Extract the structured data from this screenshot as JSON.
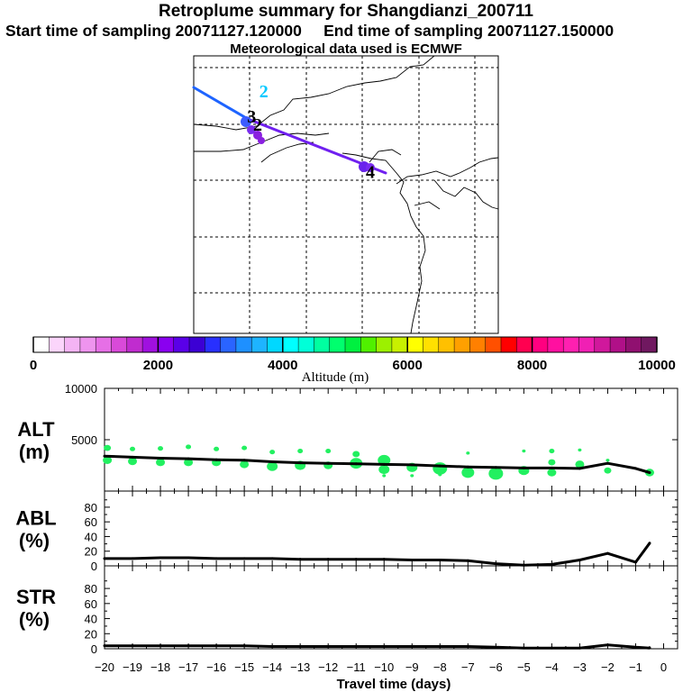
{
  "header": {
    "title": "Retroplume summary for Shangdianzi_200711",
    "start_label": "Start time of sampling",
    "start_value": "20071127.120000",
    "end_label": "End time of sampling",
    "end_value": "20071127.150000",
    "met_line": "Meteorological data used is ECMWF"
  },
  "map": {
    "markers": [
      {
        "label": "2",
        "lon_frac": 0.23,
        "lat_frac": 0.15,
        "color": "#00c8ff"
      },
      {
        "label": "3",
        "lon_frac": 0.19,
        "lat_frac": 0.24,
        "color": "#000000"
      },
      {
        "label": "2",
        "lon_frac": 0.21,
        "lat_frac": 0.27,
        "color": "#000000"
      },
      {
        "label": "4",
        "lon_frac": 0.58,
        "lat_frac": 0.44,
        "color": "#000000"
      }
    ]
  },
  "colorbar": {
    "label": "Altitude (m)",
    "tick_labels": [
      "0",
      "2000",
      "4000",
      "6000",
      "8000",
      "10000"
    ],
    "min": 0,
    "max": 10000,
    "colors": [
      "#ffffff",
      "#fbd5fb",
      "#f4b4f4",
      "#ee94ee",
      "#e66fe6",
      "#d94ad9",
      "#c02ccf",
      "#a010df",
      "#8a00f0",
      "#5a00e8",
      "#3c00d4",
      "#2830ff",
      "#2a64ff",
      "#1e90ff",
      "#1eb4ff",
      "#00d8ff",
      "#00ffff",
      "#00ffd8",
      "#00ffa0",
      "#00ff6e",
      "#00f040",
      "#50f000",
      "#9cf000",
      "#c8f000",
      "#ffff00",
      "#ffe000",
      "#ffc000",
      "#ffa000",
      "#ff8000",
      "#ff5000",
      "#ff0000",
      "#ff0050",
      "#ff0080",
      "#ff10a0",
      "#ff20b0",
      "#f020b4",
      "#d0189c",
      "#b01088",
      "#901070",
      "#701860"
    ]
  },
  "chart_data": [
    {
      "type": "line",
      "panel": "ALT",
      "ylabel_line1": "ALT",
      "ylabel_line2": "(m)",
      "ylim": [
        0,
        10000
      ],
      "yticks": [
        0,
        5000,
        10000
      ],
      "ytick_labels": [
        "",
        "5000",
        "10000"
      ],
      "x": [
        -20,
        -19,
        -18,
        -17,
        -16,
        -15,
        -14,
        -13,
        -12,
        -11,
        -10,
        -9,
        -8,
        -7,
        -6,
        -5,
        -4,
        -3,
        -2,
        -1,
        -0.5
      ],
      "values": [
        3400,
        3300,
        3200,
        3150,
        3050,
        3000,
        2850,
        2750,
        2700,
        2650,
        2600,
        2550,
        2450,
        2350,
        2300,
        2250,
        2250,
        2200,
        2700,
        2200,
        1800
      ],
      "scatter_color": "#22f060",
      "scatter": [
        {
          "x": -19.9,
          "y": 4200,
          "s": 4
        },
        {
          "x": -19.9,
          "y": 3000,
          "s": 5
        },
        {
          "x": -19,
          "y": 4100,
          "s": 3
        },
        {
          "x": -19,
          "y": 2900,
          "s": 5
        },
        {
          "x": -18,
          "y": 4150,
          "s": 3
        },
        {
          "x": -18,
          "y": 2800,
          "s": 5
        },
        {
          "x": -17,
          "y": 4300,
          "s": 3
        },
        {
          "x": -17,
          "y": 2800,
          "s": 5
        },
        {
          "x": -16,
          "y": 4100,
          "s": 3
        },
        {
          "x": -16,
          "y": 2800,
          "s": 5
        },
        {
          "x": -15,
          "y": 4200,
          "s": 3
        },
        {
          "x": -15,
          "y": 2600,
          "s": 5
        },
        {
          "x": -14,
          "y": 3800,
          "s": 3
        },
        {
          "x": -14,
          "y": 2400,
          "s": 6
        },
        {
          "x": -13,
          "y": 3900,
          "s": 3
        },
        {
          "x": -13,
          "y": 2500,
          "s": 6
        },
        {
          "x": -12,
          "y": 3900,
          "s": 3
        },
        {
          "x": -12,
          "y": 2500,
          "s": 5
        },
        {
          "x": -11,
          "y": 3600,
          "s": 4
        },
        {
          "x": -11,
          "y": 2700,
          "s": 7
        },
        {
          "x": -10,
          "y": 3000,
          "s": 7
        },
        {
          "x": -10,
          "y": 2100,
          "s": 6
        },
        {
          "x": -10,
          "y": 1500,
          "s": 2
        },
        {
          "x": -9,
          "y": 2300,
          "s": 6
        },
        {
          "x": -9,
          "y": 1500,
          "s": 2
        },
        {
          "x": -8,
          "y": 2200,
          "s": 8
        },
        {
          "x": -8,
          "y": 1600,
          "s": 2
        },
        {
          "x": -7,
          "y": 3700,
          "s": 2
        },
        {
          "x": -7,
          "y": 1800,
          "s": 7
        },
        {
          "x": -6,
          "y": 1700,
          "s": 8
        },
        {
          "x": -5,
          "y": 3900,
          "s": 2
        },
        {
          "x": -5,
          "y": 2000,
          "s": 6
        },
        {
          "x": -4,
          "y": 3900,
          "s": 3
        },
        {
          "x": -4,
          "y": 2800,
          "s": 4
        },
        {
          "x": -4,
          "y": 1800,
          "s": 5
        },
        {
          "x": -3,
          "y": 4000,
          "s": 2
        },
        {
          "x": -3,
          "y": 2600,
          "s": 5
        },
        {
          "x": -2,
          "y": 3000,
          "s": 2
        },
        {
          "x": -2,
          "y": 2000,
          "s": 4
        },
        {
          "x": -0.5,
          "y": 1800,
          "s": 5
        }
      ]
    },
    {
      "type": "line",
      "panel": "ABL",
      "ylabel_line1": "ABL",
      "ylabel_line2": "(%)",
      "ylim": [
        0,
        100
      ],
      "yticks": [
        0,
        20,
        40,
        60,
        80
      ],
      "ytick_labels": [
        "0",
        "20",
        "40",
        "60",
        "80"
      ],
      "x": [
        -20,
        -19,
        -18,
        -17,
        -16,
        -15,
        -14,
        -13,
        -12,
        -11,
        -10,
        -9,
        -8,
        -7,
        -6,
        -5,
        -4,
        -3,
        -2,
        -1,
        -0.5
      ],
      "values": [
        10,
        10,
        11,
        11,
        10,
        10,
        10,
        9,
        9,
        9,
        9,
        8,
        8,
        7,
        3,
        1,
        2,
        8,
        17,
        5,
        31
      ]
    },
    {
      "type": "line",
      "panel": "STR",
      "ylabel_line1": "STR",
      "ylabel_line2": "(%)",
      "ylim": [
        0,
        100
      ],
      "yticks": [
        0,
        20,
        40,
        60,
        80
      ],
      "ytick_labels": [
        "0",
        "20",
        "40",
        "60",
        "80"
      ],
      "x": [
        -20,
        -19,
        -18,
        -17,
        -16,
        -15,
        -14,
        -13,
        -12,
        -11,
        -10,
        -9,
        -8,
        -7,
        -6,
        -5,
        -4,
        -3,
        -2,
        -1,
        -0.5
      ],
      "values": [
        4,
        4,
        4,
        4,
        4,
        4,
        3,
        3,
        3,
        3,
        3,
        3,
        3,
        3,
        2,
        1,
        1,
        1,
        5,
        2,
        1
      ]
    }
  ],
  "xaxis": {
    "label": "Travel time (days)",
    "ticks": [
      -20,
      -19,
      -18,
      -17,
      -16,
      -15,
      -14,
      -13,
      -12,
      -11,
      -10,
      -9,
      -8,
      -7,
      -6,
      -5,
      -4,
      -3,
      -2,
      -1,
      0
    ],
    "tick_labels": [
      "−20",
      "−19",
      "−18",
      "−17",
      "−16",
      "−15",
      "−14",
      "−13",
      "−12",
      "−11",
      "−10",
      "−9",
      "−8",
      "−7",
      "−6",
      "−5",
      "−4",
      "−3",
      "−2",
      "−1",
      "0"
    ],
    "xlim": [
      -20,
      0.5
    ]
  }
}
